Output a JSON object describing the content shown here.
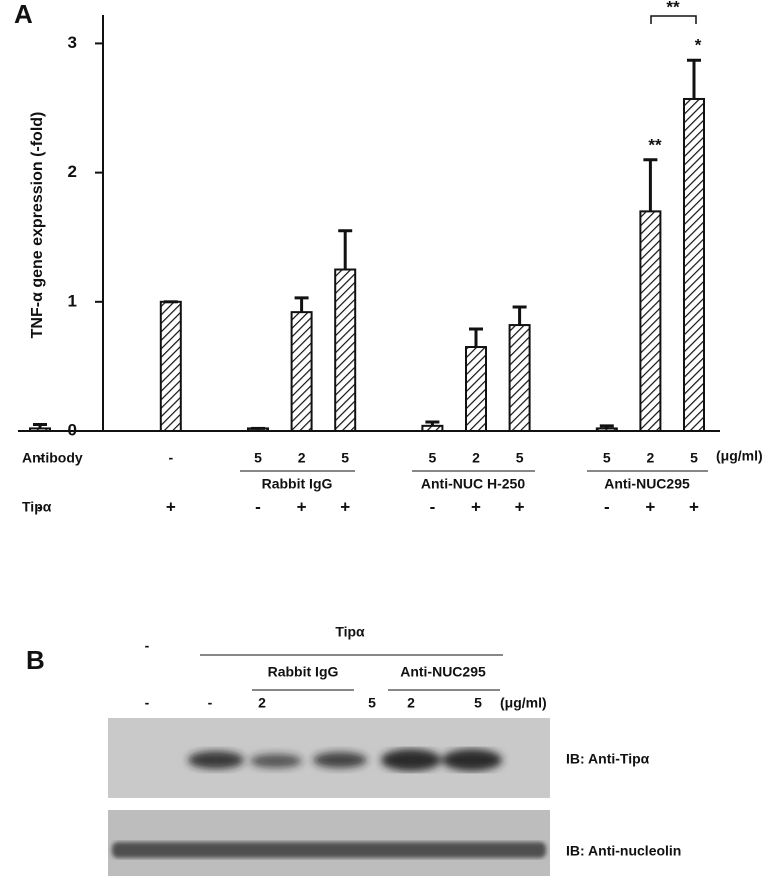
{
  "chart_data": {
    "type": "bar",
    "panel_label": "A",
    "ylabel": "TNF-α gene expression (-fold)",
    "categories": [
      null,
      null,
      null,
      null,
      null,
      null,
      null,
      null,
      null,
      null,
      null,
      null,
      null,
      null,
      null,
      null
    ],
    "values": [
      0.02,
      null,
      null,
      1.0,
      null,
      0.02,
      0.92,
      1.25,
      null,
      0.04,
      0.65,
      0.82,
      null,
      0.02,
      1.7,
      2.57
    ],
    "errors": [
      0.03,
      null,
      null,
      0,
      null,
      0,
      0.11,
      0.3,
      null,
      0.03,
      0.14,
      0.14,
      null,
      0.02,
      0.4,
      0.3
    ],
    "color": "#111111",
    "hatch": true,
    "ylim": [
      0,
      3.22
    ],
    "yticks": [
      0,
      1,
      2,
      3
    ],
    "row_labels": [
      "Antibody",
      "Tipα"
    ],
    "antibody": [
      "-",
      null,
      null,
      "-",
      null,
      "5",
      "2",
      "5",
      null,
      "5",
      "2",
      "5",
      null,
      "5",
      "2",
      "5"
    ],
    "tipa": [
      "-",
      null,
      null,
      "+",
      null,
      "-",
      "+",
      "+",
      null,
      "-",
      "+",
      "+",
      null,
      "-",
      "+",
      "+"
    ],
    "unit": "(μg/ml)",
    "groups": [
      "Rabbit IgG",
      "Anti-NUC H-250",
      "Anti-NUC295"
    ],
    "annotations": [
      "**",
      "*",
      "**"
    ]
  },
  "blot": {
    "label": "B",
    "treatment": "Tipα",
    "untreated": "-",
    "groups": [
      "Rabbit IgG",
      "Anti-NUC295"
    ],
    "doses": [
      "-",
      "-",
      "2",
      "5",
      "2",
      "5"
    ],
    "unit": "(μg/ml)",
    "blots": [
      "IB: Anti-Tipα",
      "IB: Anti-nucleolin"
    ]
  }
}
